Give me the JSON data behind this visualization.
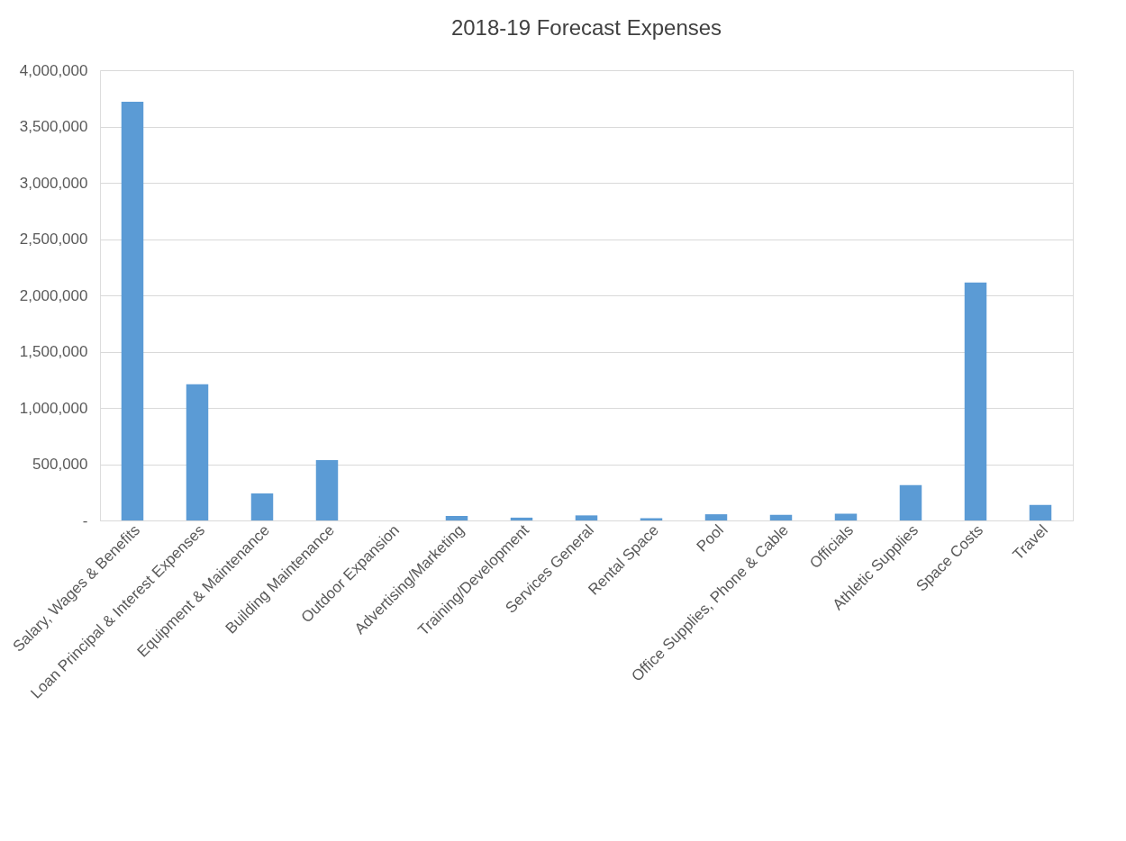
{
  "chart_data": {
    "type": "bar",
    "title": "2018-19 Forecast Expenses",
    "categories": [
      "Salary, Wages & Benefits",
      "Loan Principal & Interest Expenses",
      "Equipment & Maintenance",
      "Building Maintenance",
      "Outdoor Expansion",
      "Advertising/Marketing",
      "Training/Development",
      "Services General",
      "Rental Space",
      "Pool",
      "Office Supplies, Phone & Cable",
      "Officials",
      "Athletic Supplies",
      "Space Costs",
      "Travel"
    ],
    "values": [
      3720000,
      1210000,
      240000,
      536000,
      0,
      40000,
      25000,
      45000,
      20000,
      55000,
      50000,
      60000,
      314000,
      2115000,
      138000
    ],
    "color": "#5b9bd5",
    "ylim": [
      0,
      4000000
    ],
    "yticks": [
      {
        "value": 0,
        "label": "-"
      },
      {
        "value": 500000,
        "label": "500,000"
      },
      {
        "value": 1000000,
        "label": "1,000,000"
      },
      {
        "value": 1500000,
        "label": "1,500,000"
      },
      {
        "value": 2000000,
        "label": "2,000,000"
      },
      {
        "value": 2500000,
        "label": "2,500,000"
      },
      {
        "value": 3000000,
        "label": "3,000,000"
      },
      {
        "value": 3500000,
        "label": "3,500,000"
      },
      {
        "value": 4000000,
        "label": "4,000,000"
      }
    ],
    "grid": "y"
  }
}
